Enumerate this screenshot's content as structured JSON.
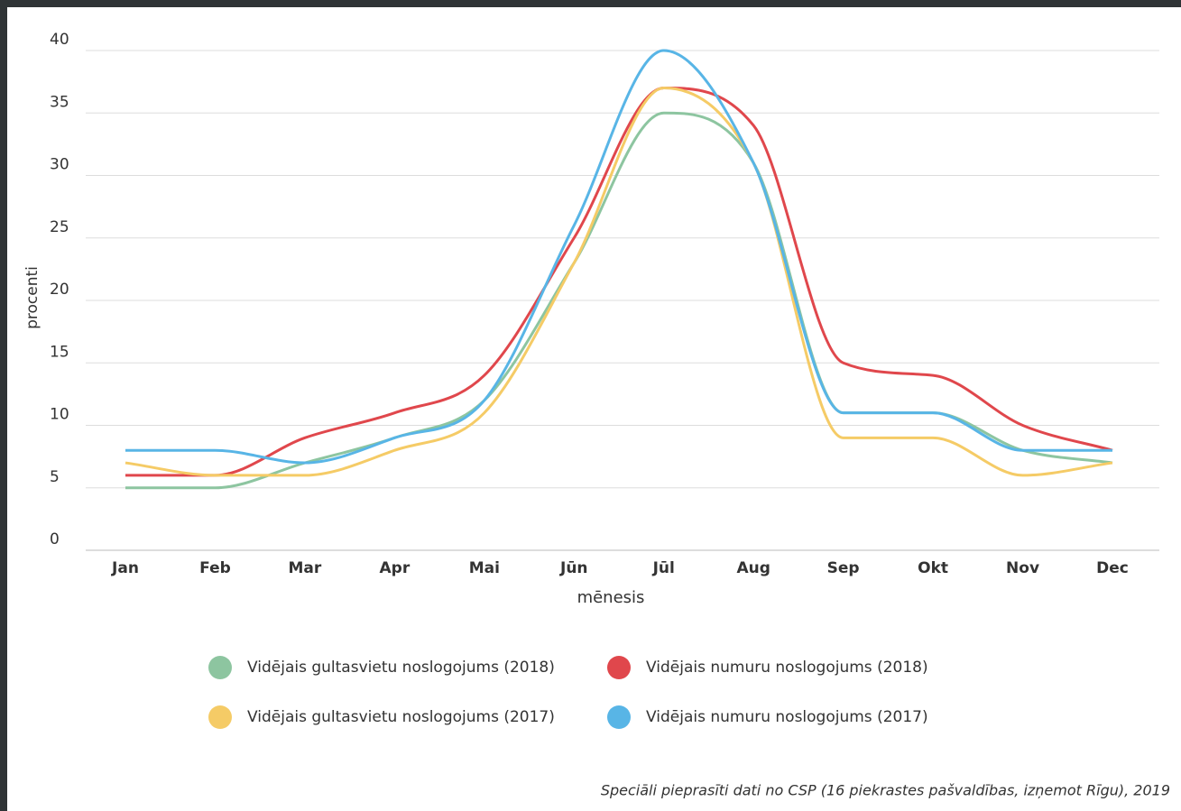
{
  "chart_data": {
    "type": "line",
    "categories": [
      "Jan",
      "Feb",
      "Mar",
      "Apr",
      "Mai",
      "Jūn",
      "Jūl",
      "Aug",
      "Sep",
      "Okt",
      "Nov",
      "Dec"
    ],
    "series": [
      {
        "name": "Vidējais gultasvietu noslogojums (2018)",
        "color": "#8dc5a0",
        "values": [
          5,
          5,
          7,
          9,
          12,
          23,
          35,
          31,
          11,
          11,
          8,
          7
        ]
      },
      {
        "name": "Vidējais numuru noslogojums (2018)",
        "color": "#e0474c",
        "values": [
          6,
          6,
          9,
          11,
          14,
          25,
          37,
          34,
          15,
          14,
          10,
          8
        ]
      },
      {
        "name": "Vidējais gultasvietu noslogojums (2017)",
        "color": "#f5cb66",
        "values": [
          7,
          6,
          6,
          8,
          11,
          23,
          37,
          31,
          9,
          9,
          6,
          7
        ]
      },
      {
        "name": "Vidējais numuru noslogojums (2017)",
        "color": "#58b5e6",
        "values": [
          8,
          8,
          7,
          9,
          12,
          26,
          40,
          31,
          11,
          11,
          8,
          8
        ]
      }
    ],
    "ylim": [
      0,
      40
    ],
    "yticks": [
      0,
      5,
      10,
      15,
      20,
      25,
      30,
      35,
      40
    ],
    "grid": true,
    "y_label": "procenti",
    "x_label": "mēnesis",
    "source": "Speciāli pieprasīti dati no CSP (16 piekrastes pašvaldības, izņemot Rīgu), 2019"
  }
}
